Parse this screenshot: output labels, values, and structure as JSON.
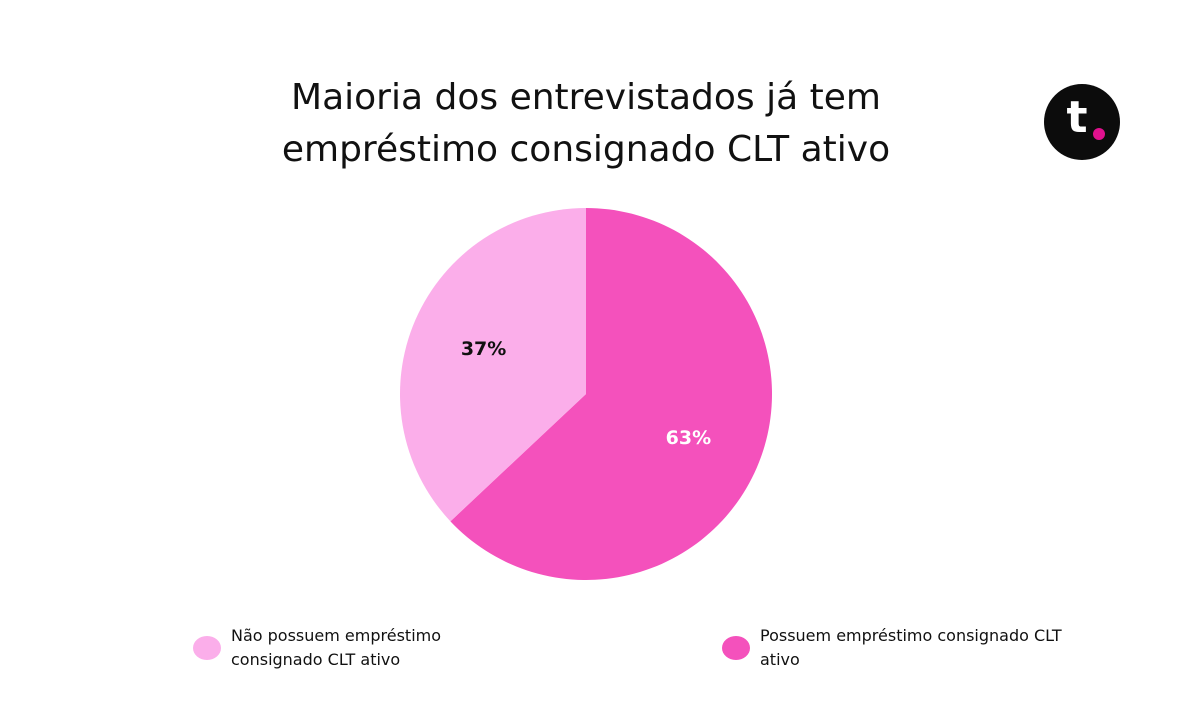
{
  "brand": "t",
  "chart_data": {
    "type": "pie",
    "title": "Maioria dos entrevistados já tem empréstimo consignado CLT ativo",
    "categories": [
      "Não possuem empréstimo consignado CLT ativo",
      "Possuem empréstimo consignado CLT ativo"
    ],
    "values": [
      37,
      63
    ],
    "value_labels": [
      "37%",
      "63%"
    ],
    "colors": [
      "#fbaeea",
      "#f451bc"
    ]
  }
}
